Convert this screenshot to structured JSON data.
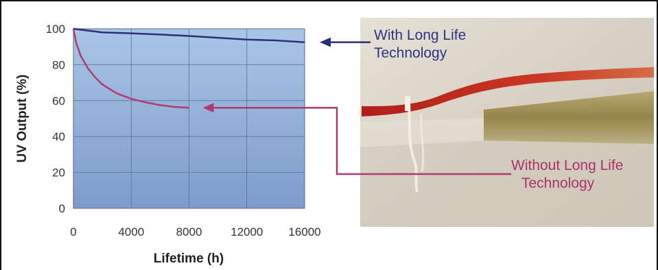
{
  "chart_data": {
    "type": "line",
    "title": "",
    "xlabel": "Lifetime (h)",
    "ylabel": "UV Output (%)",
    "xlim": [
      0,
      16000
    ],
    "ylim": [
      0,
      100
    ],
    "x_ticks": [
      "0",
      "4000",
      "8000",
      "12000",
      "16000"
    ],
    "y_ticks": [
      "0",
      "20",
      "40",
      "60",
      "80",
      "100"
    ],
    "grid": true,
    "series": [
      {
        "name": "With Long Life Technology",
        "color": "#2a2f7a",
        "points": [
          [
            0,
            100
          ],
          [
            1000,
            99
          ],
          [
            2000,
            98
          ],
          [
            4000,
            97.5
          ],
          [
            6000,
            96.8
          ],
          [
            8000,
            96
          ],
          [
            10000,
            95
          ],
          [
            12000,
            94
          ],
          [
            14000,
            93.5
          ],
          [
            16000,
            92.5
          ]
        ]
      },
      {
        "name": "Without Long Life Technology",
        "color": "#b03a6e",
        "points": [
          [
            0,
            100
          ],
          [
            200,
            92
          ],
          [
            500,
            85
          ],
          [
            1000,
            78
          ],
          [
            1500,
            73
          ],
          [
            2000,
            69
          ],
          [
            3000,
            64
          ],
          [
            4000,
            61
          ],
          [
            5000,
            59
          ],
          [
            6000,
            57.5
          ],
          [
            7000,
            56.5
          ],
          [
            8000,
            56
          ]
        ]
      }
    ],
    "annotations": [
      {
        "lines": [
          "With Long Life",
          "Technology"
        ],
        "series": 0,
        "color": "#2e3383",
        "arrow_color": "#2a2f7a"
      },
      {
        "lines": [
          "Without Long Life",
          "Technology"
        ],
        "series": 1,
        "color": "#a93466",
        "arrow_color": "#b03a6e"
      }
    ]
  },
  "photo": {
    "icon": "uv-lamp-photo",
    "colors": {
      "background": "#d9d2c7",
      "cable": "#c0281e",
      "band": "#9c8a44"
    }
  }
}
